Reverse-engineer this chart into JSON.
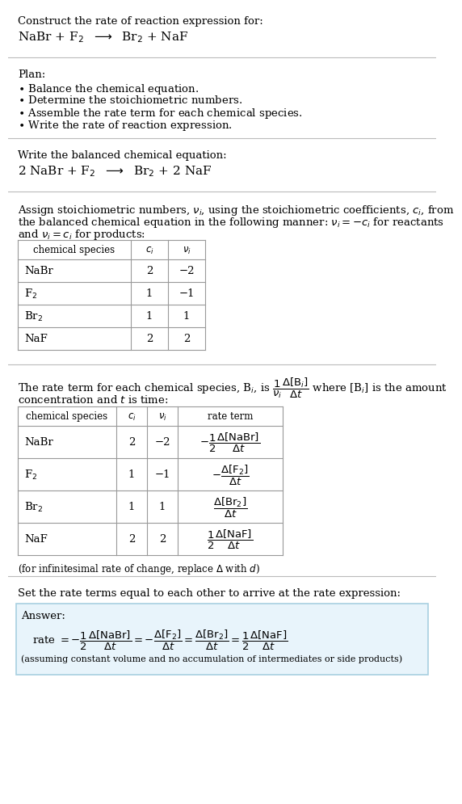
{
  "bg_color": "#ffffff",
  "text_color": "#000000",
  "font_family": "DejaVu Serif",
  "title_line1": "Construct the rate of reaction expression for:",
  "title_eq": "NaBr + F$_2$  $\\longrightarrow$  Br$_2$ + NaF",
  "plan_label": "Plan:",
  "plan_items": [
    "$\\bullet$ Balance the chemical equation.",
    "$\\bullet$ Determine the stoichiometric numbers.",
    "$\\bullet$ Assemble the rate term for each chemical species.",
    "$\\bullet$ Write the rate of reaction expression."
  ],
  "balanced_label": "Write the balanced chemical equation:",
  "balanced_eq": "2 NaBr + F$_2$  $\\longrightarrow$  Br$_2$ + 2 NaF",
  "assign_text1": "Assign stoichiometric numbers, $\\nu_i$, using the stoichiometric coefficients, $c_i$, from",
  "assign_text2": "the balanced chemical equation in the following manner: $\\nu_i = -c_i$ for reactants",
  "assign_text3": "and $\\nu_i = c_i$ for products:",
  "table1_headers": [
    "chemical species",
    "$c_i$",
    "$\\nu_i$"
  ],
  "table1_rows": [
    [
      "NaBr",
      "2",
      "−2"
    ],
    [
      "F$_2$",
      "1",
      "−1"
    ],
    [
      "Br$_2$",
      "1",
      "1"
    ],
    [
      "NaF",
      "2",
      "2"
    ]
  ],
  "rate_text1": "The rate term for each chemical species, B$_i$, is $\\dfrac{1}{\\nu_i}\\dfrac{\\Delta[\\mathrm{B}_i]}{\\Delta t}$ where [B$_i$] is the amount",
  "rate_text2": "concentration and $t$ is time:",
  "table2_headers": [
    "chemical species",
    "$c_i$",
    "$\\nu_i$",
    "rate term"
  ],
  "table2_rows": [
    [
      "NaBr",
      "2",
      "−2",
      "$-\\dfrac{1}{2}\\dfrac{\\Delta[\\mathrm{NaBr}]}{\\Delta t}$"
    ],
    [
      "F$_2$",
      "1",
      "−1",
      "$-\\dfrac{\\Delta[\\mathrm{F_2}]}{\\Delta t}$"
    ],
    [
      "Br$_2$",
      "1",
      "1",
      "$\\dfrac{\\Delta[\\mathrm{Br_2}]}{\\Delta t}$"
    ],
    [
      "NaF",
      "2",
      "2",
      "$\\dfrac{1}{2}\\dfrac{\\Delta[\\mathrm{NaF}]}{\\Delta t}$"
    ]
  ],
  "infinitesimal_note": "(for infinitesimal rate of change, replace $\\Delta$ with $d$)",
  "set_rate_text": "Set the rate terms equal to each other to arrive at the rate expression:",
  "answer_label": "Answer:",
  "answer_eq": "rate $= -\\dfrac{1}{2}\\dfrac{\\Delta[\\mathrm{NaBr}]}{\\Delta t} = -\\dfrac{\\Delta[\\mathrm{F_2}]}{\\Delta t} = \\dfrac{\\Delta[\\mathrm{Br_2}]}{\\Delta t} = \\dfrac{1}{2}\\dfrac{\\Delta[\\mathrm{NaF}]}{\\Delta t}$",
  "answer_note": "(assuming constant volume and no accumulation of intermediates or side products)",
  "answer_box_color": "#e8f4fb",
  "answer_box_border": "#a8cfe0",
  "separator_color": "#bbbbbb",
  "table_border_color": "#999999"
}
